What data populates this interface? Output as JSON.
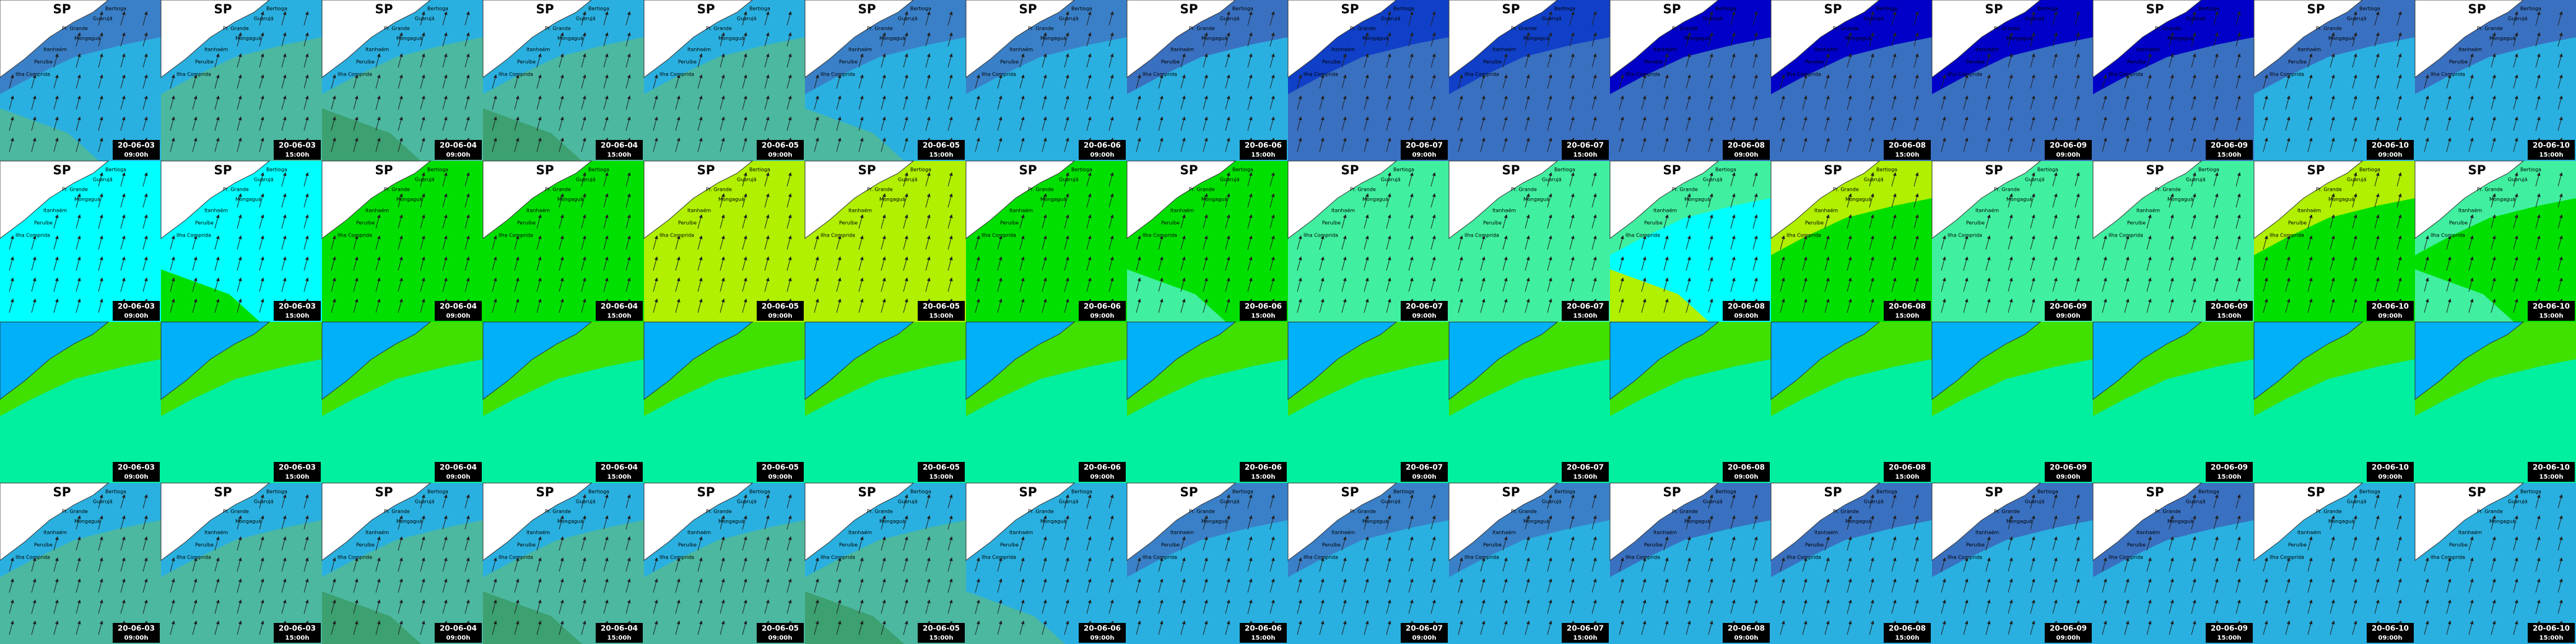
{
  "map_title": "SP",
  "places": [
    "Bertioga",
    "Guarujá",
    "Pr. Grande",
    "Mongaguá",
    "Itanhaém",
    "Peruíbe",
    "Ilha Comprida"
  ],
  "columns": [
    {
      "date": "20-06-03",
      "time": "09:00h"
    },
    {
      "date": "20-06-03",
      "time": "15:00h"
    },
    {
      "date": "20-06-04",
      "time": "09:00h"
    },
    {
      "date": "20-06-04",
      "time": "15:00h"
    },
    {
      "date": "20-06-05",
      "time": "09:00h"
    },
    {
      "date": "20-06-05",
      "time": "15:00h"
    },
    {
      "date": "20-06-06",
      "time": "09:00h"
    },
    {
      "date": "20-06-06",
      "time": "15:00h"
    },
    {
      "date": "20-06-07",
      "time": "09:00h"
    },
    {
      "date": "20-06-07",
      "time": "15:00h"
    },
    {
      "date": "20-06-08",
      "time": "09:00h"
    },
    {
      "date": "20-06-08",
      "time": "15:00h"
    },
    {
      "date": "20-06-09",
      "time": "09:00h"
    },
    {
      "date": "20-06-09",
      "time": "15:00h"
    },
    {
      "date": "20-06-10",
      "time": "09:00h"
    },
    {
      "date": "20-06-10",
      "time": "15:00h"
    }
  ],
  "rows": [
    {
      "labels": true,
      "land": "#ffffff",
      "base": [
        "#2ab0e0",
        "#4cb8a0",
        "#4cb8a0",
        "#4cb8a0",
        "#4cb8a0",
        "#2ab0e0",
        "#2ab0e0",
        "#2ab0e0",
        "#3a70c0",
        "#3a70c0",
        "#3a70c0",
        "#3a70c0",
        "#3a70c0",
        "#3a70c0",
        "#2ab0e0",
        "#2ab0e0"
      ],
      "band": [
        "#3a80c8",
        "#2ab0e0",
        "#2ab0e0",
        "#2ab0e0",
        "#2ab0e0",
        "#3a80c8",
        "#3a80c8",
        "#3a70c0",
        "#1040c8",
        "#1040c8",
        "#0000c8",
        "#0000c8",
        "#0000c8",
        "#0000c8",
        "#3a70c0",
        "#3a70c0"
      ],
      "patch": [
        "#4cb8a0",
        "#4cb8a0",
        "#3ca070",
        "#3ca070",
        "#4cb8a0",
        "#4cb8a0",
        "#2ab0e0",
        "#2ab0e0",
        "#3a70c0",
        "#3a70c0",
        "#3a70c0",
        "#3a70c0",
        "#3a70c0",
        "#3a70c0",
        "#2ab0e0",
        "#2ab0e0"
      ]
    },
    {
      "labels": true,
      "land": "#ffffff",
      "base": [
        "#00ffff",
        "#00ffff",
        "#00e000",
        "#00e000",
        "#b0f000",
        "#b0f000",
        "#00e000",
        "#00e000",
        "#40f0a0",
        "#40f0a0",
        "#00ffff",
        "#00e000",
        "#40f0a0",
        "#40f0a0",
        "#00e000",
        "#00e000"
      ],
      "band": [
        "#00ffff",
        "#00ffff",
        "#00e000",
        "#00e000",
        "#b0f000",
        "#b0f000",
        "#00e000",
        "#00e000",
        "#40f0a0",
        "#40f0a0",
        "#40f0a0",
        "#b0f000",
        "#40f0a0",
        "#40f0a0",
        "#b0f000",
        "#40f0a0"
      ],
      "patch": [
        "#00ffff",
        "#00e000",
        "#00e000",
        "#00e000",
        "#b0f000",
        "#b0f000",
        "#00e000",
        "#40f0a0",
        "#40f0a0",
        "#40f0a0",
        "#b0f000",
        "#00e000",
        "#40f0a0",
        "#40f0a0",
        "#00e000",
        "#40f0a0"
      ]
    },
    {
      "labels": false,
      "land": "#00b0f8",
      "base": [
        "#00f0a0",
        "#00f0a0",
        "#00f0a0",
        "#00f0a0",
        "#00f0a0",
        "#00f0a0",
        "#00f0a0",
        "#00f0a0",
        "#00f0a0",
        "#00f0a0",
        "#00f0a0",
        "#00f0a0",
        "#00f0a0",
        "#00f0a0",
        "#00f0a0",
        "#00f0a0"
      ],
      "band": [
        "#40e000",
        "#40e000",
        "#40e000",
        "#40e000",
        "#40e000",
        "#40e000",
        "#40e000",
        "#40e000",
        "#40e000",
        "#40e000",
        "#40e000",
        "#40e000",
        "#40e000",
        "#40e000",
        "#40e000",
        "#40e000"
      ],
      "patch": [
        "#00f0a0",
        "#00f0a0",
        "#00f0a0",
        "#00f0a0",
        "#00f0a0",
        "#00f0a0",
        "#00f0a0",
        "#00f0a0",
        "#00f0a0",
        "#00f0a0",
        "#00f0a0",
        "#00f0a0",
        "#00f0a0",
        "#00f0a0",
        "#00f0a0",
        "#00f0a0"
      ]
    },
    {
      "labels": true,
      "land": "#ffffff",
      "base": [
        "#4cb8a0",
        "#4cb8a0",
        "#4cb8a0",
        "#4cb8a0",
        "#4cb8a0",
        "#4cb8a0",
        "#2ab0e0",
        "#2ab0e0",
        "#2ab0e0",
        "#2ab0e0",
        "#2ab0e0",
        "#2ab0e0",
        "#2ab0e0",
        "#2ab0e0",
        "#2ab0e0",
        "#2ab0e0"
      ],
      "band": [
        "#2ab0e0",
        "#2ab0e0",
        "#2ab0e0",
        "#2ab0e0",
        "#2ab0e0",
        "#2ab0e0",
        "#2ab0e0",
        "#3a80c8",
        "#3a80c8",
        "#3a80c8",
        "#3a70c0",
        "#3a70c0",
        "#3a70c0",
        "#3a70c0",
        "#2ab0e0",
        "#2ab0e0"
      ],
      "patch": [
        "#4cb8a0",
        "#4cb8a0",
        "#3ca070",
        "#3ca070",
        "#4cb8a0",
        "#3ca070",
        "#4cb8a0",
        "#2ab0e0",
        "#2ab0e0",
        "#2ab0e0",
        "#2ab0e0",
        "#2ab0e0",
        "#2ab0e0",
        "#2ab0e0",
        "#2ab0e0",
        "#2ab0e0"
      ]
    }
  ]
}
